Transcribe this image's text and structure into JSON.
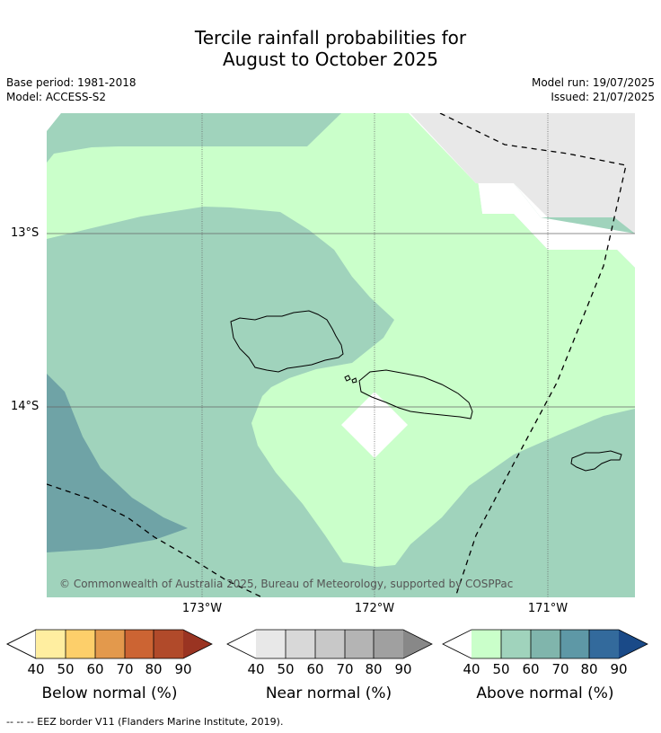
{
  "title_line1": "Tercile rainfall probabilities for",
  "title_line2": "August to October 2025",
  "base_period": "Base period: 1981-2018",
  "model": "Model: ACCESS-S2",
  "model_run": "Model run: 19/07/2025",
  "issued": "Issued: 21/07/2025",
  "credit": "© Commonwealth of Australia 2025, Bureau of Meteorology, supported by COSPPac",
  "lat_labels": [
    "13°S",
    "14°S"
  ],
  "lon_labels": [
    "173°W",
    "172°W",
    "171°W"
  ],
  "legends": [
    {
      "title": "Below normal (%)",
      "ticks": [
        "40",
        "50",
        "60",
        "70",
        "80",
        "90"
      ],
      "colors": [
        "#ffeea0",
        "#fdcf6a",
        "#e3994c",
        "#cc6433",
        "#b14a2a",
        "#9a3422"
      ]
    },
    {
      "title": "Near normal (%)",
      "ticks": [
        "40",
        "50",
        "60",
        "70",
        "80",
        "90"
      ],
      "colors": [
        "#e8e8e8",
        "#d8d8d8",
        "#c8c8c8",
        "#b4b4b4",
        "#a0a0a0",
        "#888888"
      ]
    },
    {
      "title": "Above normal (%)",
      "ticks": [
        "40",
        "50",
        "60",
        "70",
        "80",
        "90"
      ],
      "colors": [
        "#caffca",
        "#a0d3bc",
        "#80b5ac",
        "#5e98a6",
        "#336a9c",
        "#1a4a88"
      ]
    }
  ],
  "footnote": "--  --  -- EEZ border V11 (Flanders Marine Institute, 2019)."
}
